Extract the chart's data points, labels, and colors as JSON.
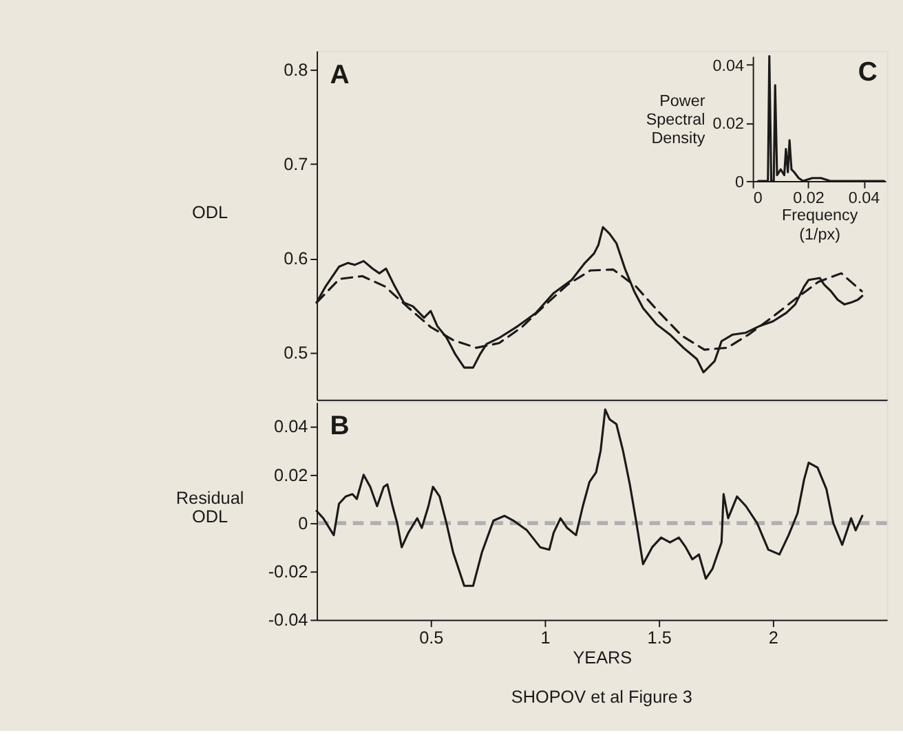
{
  "chart_data": [
    {
      "type": "line",
      "ylabel": "ODL",
      "xlim": [
        0,
        2.5
      ],
      "ylim": [
        0.45,
        0.82
      ],
      "yticks": [
        0.5,
        0.6,
        0.7,
        0.8
      ],
      "tick_labels": "y",
      "annotations": [
        "A"
      ],
      "series": [
        {
          "color": "#1a1a1a",
          "line_style": "solid",
          "x": [
            0.0,
            0.039,
            0.098,
            0.137,
            0.167,
            0.206,
            0.245,
            0.275,
            0.304,
            0.343,
            0.382,
            0.422,
            0.471,
            0.5,
            0.529,
            0.569,
            0.608,
            0.647,
            0.686,
            0.716,
            0.745,
            0.804,
            0.882,
            0.961,
            1.039,
            1.118,
            1.176,
            1.216,
            1.235,
            1.255,
            1.284,
            1.314,
            1.353,
            1.392,
            1.431,
            1.49,
            1.549,
            1.608,
            1.667,
            1.696,
            1.745,
            1.775,
            1.824,
            1.882,
            1.941,
            2.0,
            2.059,
            2.098,
            2.137,
            2.157,
            2.206,
            2.225,
            2.255,
            2.284,
            2.314,
            2.343,
            2.373,
            2.392
          ],
          "values": [
            0.553,
            0.57,
            0.591,
            0.595,
            0.593,
            0.597,
            0.589,
            0.584,
            0.589,
            0.57,
            0.553,
            0.549,
            0.537,
            0.544,
            0.528,
            0.516,
            0.498,
            0.484,
            0.484,
            0.498,
            0.509,
            0.516,
            0.528,
            0.542,
            0.563,
            0.577,
            0.595,
            0.605,
            0.614,
            0.633,
            0.626,
            0.616,
            0.588,
            0.565,
            0.547,
            0.53,
            0.519,
            0.505,
            0.493,
            0.479,
            0.491,
            0.512,
            0.519,
            0.521,
            0.528,
            0.533,
            0.542,
            0.551,
            0.57,
            0.577,
            0.579,
            0.572,
            0.565,
            0.556,
            0.551,
            0.553,
            0.556,
            0.56
          ]
        },
        {
          "color": "#1a1a1a",
          "line_style": "dashed",
          "x": [
            0.0,
            0.1,
            0.2,
            0.3,
            0.4,
            0.5,
            0.6,
            0.7,
            0.8,
            0.9,
            1.0,
            1.1,
            1.2,
            1.3,
            1.4,
            1.5,
            1.6,
            1.7,
            1.8,
            1.9,
            2.0,
            2.1,
            2.2,
            2.3,
            2.39
          ],
          "values": [
            0.553,
            0.578,
            0.581,
            0.57,
            0.548,
            0.527,
            0.513,
            0.505,
            0.51,
            0.527,
            0.55,
            0.572,
            0.587,
            0.588,
            0.57,
            0.543,
            0.518,
            0.503,
            0.505,
            0.52,
            0.538,
            0.557,
            0.575,
            0.584,
            0.565
          ]
        }
      ]
    },
    {
      "type": "line",
      "xlabel": "Frequency (1/px)",
      "ylabel": "Power Spectral Density",
      "xlim": [
        0,
        0.048
      ],
      "ylim": [
        0,
        0.043
      ],
      "xticks": [
        0,
        0.02,
        0.04
      ],
      "yticks": [
        0,
        0.02,
        0.04
      ],
      "annotations": [
        "C"
      ],
      "series": [
        {
          "color": "#1a1a1a",
          "line_style": "solid",
          "x": [
            0.002,
            0.0055,
            0.006,
            0.0067,
            0.0076,
            0.0081,
            0.0088,
            0.0101,
            0.0114,
            0.012,
            0.0127,
            0.0133,
            0.014,
            0.015,
            0.0166,
            0.0182,
            0.0215,
            0.0247,
            0.028,
            0.0345,
            0.0475
          ],
          "values": [
            0.0,
            0.0,
            0.043,
            0.0,
            0.0,
            0.033,
            0.002,
            0.004,
            0.002,
            0.011,
            0.003,
            0.014,
            0.004,
            0.003,
            0.001,
            0.0,
            0.001,
            0.001,
            0.0,
            0.0,
            0.0
          ]
        }
      ]
    },
    {
      "type": "line",
      "xlabel": "YEARS",
      "ylabel": "Residual ODL",
      "xlim": [
        0,
        2.5
      ],
      "ylim": [
        -0.04,
        0.05
      ],
      "xticks": [
        0.5,
        1,
        1.5,
        2
      ],
      "yticks": [
        -0.04,
        -0.02,
        0,
        0.02,
        0.04
      ],
      "annotations": [
        "B",
        "SHOPOV et al Figure 3"
      ],
      "ref_lines": [
        {
          "axis": "y",
          "value": 0,
          "label": null,
          "color": "#b0b0b0",
          "line_style": "dashed"
        }
      ],
      "series": [
        {
          "color": "#1a1a1a",
          "line_style": "solid",
          "x": [
            0.0,
            0.029,
            0.075,
            0.098,
            0.127,
            0.157,
            0.176,
            0.206,
            0.235,
            0.265,
            0.294,
            0.31,
            0.333,
            0.353,
            0.373,
            0.402,
            0.441,
            0.461,
            0.49,
            0.51,
            0.539,
            0.569,
            0.598,
            0.647,
            0.686,
            0.725,
            0.775,
            0.824,
            0.863,
            0.922,
            0.98,
            1.02,
            1.039,
            1.069,
            1.098,
            1.137,
            1.167,
            1.196,
            1.225,
            1.245,
            1.265,
            1.284,
            1.314,
            1.343,
            1.373,
            1.402,
            1.431,
            1.471,
            1.51,
            1.549,
            1.588,
            1.618,
            1.647,
            1.676,
            1.706,
            1.735,
            1.775,
            1.784,
            1.804,
            1.843,
            1.882,
            1.931,
            1.98,
            2.029,
            2.069,
            2.108,
            2.137,
            2.157,
            2.196,
            2.235,
            2.265,
            2.304,
            2.343,
            2.363,
            2.392
          ],
          "values": [
            0.005,
            0.002,
            -0.005,
            0.008,
            0.011,
            0.012,
            0.01,
            0.02,
            0.015,
            0.007,
            0.015,
            0.016,
            0.007,
            0.0,
            -0.01,
            -0.004,
            0.002,
            -0.002,
            0.007,
            0.015,
            0.011,
            0.0,
            -0.012,
            -0.026,
            -0.026,
            -0.012,
            0.001,
            0.003,
            0.001,
            -0.003,
            -0.01,
            -0.011,
            -0.004,
            0.002,
            -0.002,
            -0.005,
            0.007,
            0.017,
            0.021,
            0.03,
            0.047,
            0.043,
            0.041,
            0.03,
            0.016,
            0.0,
            -0.017,
            -0.01,
            -0.006,
            -0.008,
            -0.006,
            -0.01,
            -0.015,
            -0.013,
            -0.023,
            -0.019,
            -0.008,
            0.012,
            0.002,
            0.011,
            0.007,
            0.0,
            -0.011,
            -0.013,
            -0.005,
            0.004,
            0.018,
            0.025,
            0.023,
            0.014,
            0.0,
            -0.009,
            0.002,
            -0.003,
            0.003
          ]
        }
      ]
    }
  ]
}
